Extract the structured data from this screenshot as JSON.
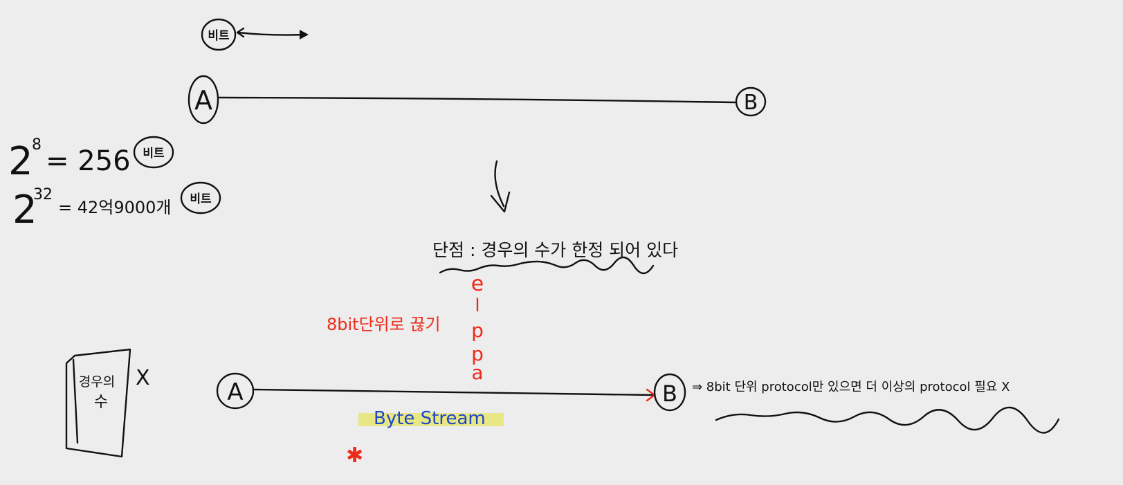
{
  "colors": {
    "background": "#ededed",
    "ink": "#111111",
    "red": "#ee2a1a",
    "blue": "#1d45c9",
    "highlight": "#e6e67a"
  },
  "top": {
    "bubble_label": "비트",
    "node_a": "A",
    "node_b": "B"
  },
  "formulas": [
    {
      "base": "2",
      "exp": "8",
      "rest": "= 256",
      "bubble": "비트"
    },
    {
      "base": "2",
      "exp": "32",
      "rest": "= 42억9000개",
      "bubble": "비트"
    }
  ],
  "middle": {
    "caption": "단점 : 경우의 수가 한정 되어 있다",
    "apple_letters": [
      "e",
      "l",
      "p",
      "p",
      "a"
    ],
    "red_note": "8bit단위로 끊기"
  },
  "bottom": {
    "node_a": "A",
    "node_b": "B",
    "byte_stream": "Byte Stream",
    "star": "✱",
    "box_label_1": "경우의",
    "box_label_2": "수",
    "box_mark": "X",
    "right_note": "⇒ 8bit 단위 protocol만 있으면 더 이상의 protocol 필요 X"
  }
}
